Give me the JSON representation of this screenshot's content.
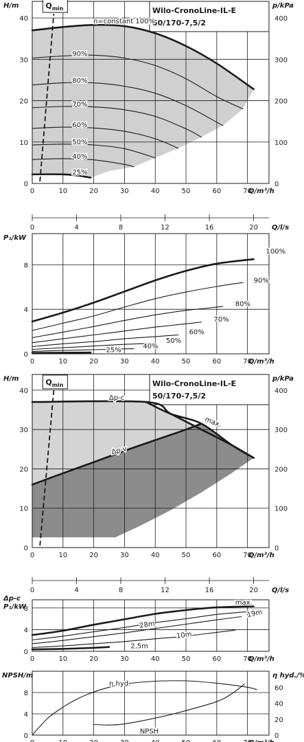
{
  "chart_data": [
    {
      "id": "head",
      "type": "line",
      "title": "Wilo-CronoLine-IL-E",
      "subtitle": "50/170-7,5/2",
      "ylabel": "H/m",
      "y2label": "p/kPa",
      "xlabel": "Q/m³/h",
      "x2label": "Q/l/s",
      "xlim": [
        0,
        77
      ],
      "ylim": [
        0,
        44
      ],
      "y2lim": [
        0,
        440
      ],
      "x2lim": [
        0,
        21.39
      ],
      "xticks": [
        0,
        10,
        20,
        30,
        40,
        50,
        60,
        70
      ],
      "yticks": [
        0,
        10,
        20,
        30,
        40
      ],
      "y2ticks": [
        0,
        100,
        200,
        300,
        400
      ],
      "x2ticks": [
        0,
        4,
        8,
        12,
        16,
        20
      ],
      "qmin_label": "min",
      "qmin_prefix": "Q",
      "region_fill": "#d0d0d0",
      "qmin_line": [
        {
          "x": 2.5,
          "y": 0.5
        },
        {
          "x": 7,
          "y": 41
        }
      ],
      "series": [
        {
          "name": "n=constant 100%",
          "points": [
            [
              0,
              37
            ],
            [
              10,
              37.8
            ],
            [
              20,
              38.3
            ],
            [
              30,
              38
            ],
            [
              40,
              36.3
            ],
            [
              50,
              33.2
            ],
            [
              60,
              29
            ],
            [
              72,
              22.8
            ]
          ],
          "bold": true
        },
        {
          "name": "90%",
          "points": [
            [
              0,
              30.3
            ],
            [
              10,
              30.8
            ],
            [
              20,
              31
            ],
            [
              30,
              30.3
            ],
            [
              40,
              28.5
            ],
            [
              50,
              25.3
            ],
            [
              60,
              21
            ],
            [
              68.5,
              18
            ]
          ]
        },
        {
          "name": "80%",
          "points": [
            [
              0,
              23.8
            ],
            [
              10,
              24.3
            ],
            [
              20,
              24.3
            ],
            [
              30,
              23.5
            ],
            [
              40,
              21.8
            ],
            [
              50,
              18.8
            ],
            [
              60,
              14.8
            ],
            [
              62,
              14
            ]
          ]
        },
        {
          "name": "70%",
          "points": [
            [
              0,
              18.3
            ],
            [
              10,
              18.6
            ],
            [
              20,
              18.5
            ],
            [
              30,
              17.8
            ],
            [
              40,
              16.2
            ],
            [
              50,
              13.2
            ],
            [
              55,
              11.2
            ]
          ]
        },
        {
          "name": "60%",
          "points": [
            [
              0,
              13.3
            ],
            [
              10,
              13.6
            ],
            [
              20,
              13.4
            ],
            [
              30,
              12.6
            ],
            [
              40,
              10.8
            ],
            [
              47.5,
              8.5
            ]
          ]
        },
        {
          "name": "50%",
          "points": [
            [
              0,
              9.3
            ],
            [
              10,
              9.5
            ],
            [
              20,
              9.3
            ],
            [
              30,
              8.4
            ],
            [
              40,
              6.2
            ]
          ]
        },
        {
          "name": "40%",
          "points": [
            [
              0,
              5.8
            ],
            [
              10,
              6
            ],
            [
              20,
              5.7
            ],
            [
              30,
              4.6
            ],
            [
              33,
              4
            ]
          ]
        },
        {
          "name": "25%",
          "points": [
            [
              0,
              2.2
            ],
            [
              10,
              2.2
            ],
            [
              15,
              1.9
            ],
            [
              19,
              1.4
            ]
          ],
          "bold": true
        }
      ],
      "region_edge": [
        [
          19,
          1.4
        ],
        [
          25,
          3
        ],
        [
          33,
          4
        ],
        [
          40,
          6.2
        ],
        [
          47.5,
          8.5
        ],
        [
          55,
          11.2
        ],
        [
          62,
          14
        ],
        [
          68.5,
          18
        ],
        [
          72,
          22.8
        ]
      ]
    },
    {
      "id": "power",
      "type": "line",
      "ylabel": "P₁/kW",
      "xlabel": "Q/m³/h",
      "xlim": [
        0,
        77
      ],
      "ylim": [
        0,
        10.8
      ],
      "xticks": [
        0,
        10,
        20,
        30,
        40,
        50,
        60,
        70
      ],
      "yticks": [
        0,
        4,
        8
      ],
      "series": [
        {
          "name": "100%",
          "points": [
            [
              0,
              2.9
            ],
            [
              10,
              3.7
            ],
            [
              20,
              4.6
            ],
            [
              30,
              5.6
            ],
            [
              40,
              6.6
            ],
            [
              50,
              7.45
            ],
            [
              60,
              8.1
            ],
            [
              72,
              8.5
            ]
          ],
          "bold": true
        },
        {
          "name": "90%",
          "points": [
            [
              0,
              2.1
            ],
            [
              10,
              2.75
            ],
            [
              20,
              3.4
            ],
            [
              30,
              4.2
            ],
            [
              40,
              4.95
            ],
            [
              50,
              5.55
            ],
            [
              60,
              6.05
            ],
            [
              68.5,
              6.4
            ]
          ]
        },
        {
          "name": "80%",
          "points": [
            [
              0,
              1.45
            ],
            [
              10,
              1.95
            ],
            [
              20,
              2.45
            ],
            [
              30,
              3
            ],
            [
              40,
              3.5
            ],
            [
              50,
              3.9
            ],
            [
              62,
              4.25
            ]
          ]
        },
        {
          "name": "70%",
          "points": [
            [
              0,
              1.0
            ],
            [
              10,
              1.35
            ],
            [
              20,
              1.7
            ],
            [
              30,
              2.05
            ],
            [
              40,
              2.4
            ],
            [
              50,
              2.7
            ],
            [
              55,
              2.85
            ]
          ]
        },
        {
          "name": "60%",
          "points": [
            [
              0,
              0.65
            ],
            [
              10,
              0.9
            ],
            [
              20,
              1.1
            ],
            [
              30,
              1.35
            ],
            [
              40,
              1.55
            ],
            [
              47.5,
              1.7
            ]
          ]
        },
        {
          "name": "50%",
          "points": [
            [
              0,
              0.4
            ],
            [
              10,
              0.55
            ],
            [
              20,
              0.7
            ],
            [
              30,
              0.85
            ],
            [
              40,
              0.95
            ]
          ]
        },
        {
          "name": "40%",
          "points": [
            [
              0,
              0.22
            ],
            [
              10,
              0.3
            ],
            [
              20,
              0.37
            ],
            [
              33,
              0.47
            ]
          ]
        },
        {
          "name": "25%",
          "points": [
            [
              0,
              0.08
            ],
            [
              10,
              0.1
            ],
            [
              19,
              0.12
            ]
          ],
          "bold": true
        }
      ]
    },
    {
      "id": "head-control",
      "type": "area",
      "title": "Wilo-CronoLine-IL-E",
      "subtitle": "50/170-7,5/2",
      "ylabel": "H/m",
      "y2label": "p/kPa",
      "xlabel": "Q/m³/h",
      "x2label": "Q/l/s",
      "xlim": [
        0,
        77
      ],
      "ylim": [
        0,
        44
      ],
      "y2lim": [
        0,
        440
      ],
      "x2lim": [
        0,
        21.39
      ],
      "xticks": [
        0,
        10,
        20,
        30,
        40,
        50,
        60,
        70
      ],
      "yticks": [
        0,
        10,
        20,
        30,
        40
      ],
      "y2ticks": [
        0,
        100,
        200,
        300,
        400
      ],
      "x2ticks": [
        0,
        4,
        8,
        12,
        16,
        20
      ],
      "qmin_label": "min",
      "qmin_prefix": "Q",
      "qmin_line": [
        {
          "x": 2.5,
          "y": 0.5
        },
        {
          "x": 7,
          "y": 40
        }
      ],
      "light_fill": "#d4d4d4",
      "dark_fill": "#8c8c8c",
      "series": [
        {
          "name": "Δp-c",
          "points": [
            [
              0,
              37
            ],
            [
              37,
              37
            ],
            [
              45,
              34
            ],
            [
              55,
              30
            ],
            [
              65,
              26
            ],
            [
              72,
              22.8
            ]
          ]
        },
        {
          "name": "Δp-v",
          "points": [
            [
              0,
              16
            ],
            [
              10,
              18.9
            ],
            [
              20,
              21.7
            ],
            [
              30,
              24.6
            ],
            [
              40,
              27.3
            ],
            [
              50,
              30
            ],
            [
              55,
              31.5
            ]
          ]
        },
        {
          "name": "max.",
          "points": [
            [
              37,
              37
            ],
            [
              45,
              34
            ],
            [
              55,
              31.5
            ],
            [
              65,
              26
            ],
            [
              72,
              22.8
            ]
          ]
        }
      ],
      "bottom_edge": [
        [
          0,
          2.6
        ],
        [
          27,
          2.6
        ],
        [
          35,
          5.5
        ],
        [
          45,
          9.5
        ],
        [
          55,
          14
        ],
        [
          65,
          19
        ],
        [
          72,
          22.8
        ]
      ]
    },
    {
      "id": "power-control",
      "type": "line",
      "ylabel_top": "Δp-c",
      "ylabel": "P₁/kW",
      "xlabel": "Q/m³/h",
      "xlim": [
        0,
        77
      ],
      "ylim": [
        0,
        9.5
      ],
      "xticks": [
        0,
        10,
        20,
        30,
        40,
        50,
        60,
        70
      ],
      "yticks": [
        0,
        4,
        8
      ],
      "series": [
        {
          "name": "max.",
          "points": [
            [
              0,
              3
            ],
            [
              10,
              3.8
            ],
            [
              20,
              4.9
            ],
            [
              30,
              5.9
            ],
            [
              40,
              6.9
            ],
            [
              50,
              7.6
            ],
            [
              60,
              8.1
            ],
            [
              72,
              8.3
            ]
          ],
          "bold": true
        },
        {
          "name": "28m",
          "points": [
            [
              0,
              2.1
            ],
            [
              10,
              2.8
            ],
            [
              20,
              3.6
            ],
            [
              30,
              4.4
            ],
            [
              40,
              5.3
            ],
            [
              50,
              6.0
            ],
            [
              60,
              6.8
            ],
            [
              70,
              7.3
            ]
          ]
        },
        {
          "name": "19m",
          "points": [
            [
              0,
              1.4
            ],
            [
              10,
              2.0
            ],
            [
              20,
              2.7
            ],
            [
              30,
              3.4
            ],
            [
              40,
              4.2
            ],
            [
              50,
              5.0
            ],
            [
              60,
              5.8
            ],
            [
              68,
              6.4
            ]
          ]
        },
        {
          "name": "10m",
          "points": [
            [
              0,
              0.7
            ],
            [
              10,
              1.0
            ],
            [
              20,
              1.4
            ],
            [
              30,
              1.8
            ],
            [
              40,
              2.3
            ],
            [
              50,
              2.8
            ],
            [
              60,
              3.5
            ],
            [
              66,
              3.9
            ]
          ]
        },
        {
          "name": "2,5m",
          "points": [
            [
              0,
              0.35
            ],
            [
              10,
              0.45
            ],
            [
              20,
              0.65
            ],
            [
              25,
              0.8
            ]
          ],
          "bold": true
        }
      ]
    },
    {
      "id": "npsh-efficiency",
      "type": "line",
      "ylabel": "NPSH/m",
      "y2label": "η hyd./%",
      "xlabel": "Q/m³/h",
      "xlim": [
        0,
        77
      ],
      "ylim": [
        0,
        12
      ],
      "y2lim": [
        0,
        80
      ],
      "xticks": [
        0,
        10,
        20,
        30,
        40,
        50,
        60,
        70
      ],
      "yticks": [
        0,
        4,
        8
      ],
      "y2ticks": [
        0,
        20,
        40,
        60
      ],
      "series": [
        {
          "name": "η hyd.",
          "axis": "y2",
          "points": [
            [
              0,
              0
            ],
            [
              5,
              21
            ],
            [
              10,
              35
            ],
            [
              15,
              46
            ],
            [
              20,
              54
            ],
            [
              25,
              60
            ],
            [
              30,
              64
            ],
            [
              40,
              67.5
            ],
            [
              50,
              68
            ],
            [
              60,
              65
            ],
            [
              70,
              60
            ],
            [
              73,
              57
            ]
          ]
        },
        {
          "name": "NPSH",
          "axis": "y",
          "points": [
            [
              20,
              2
            ],
            [
              25,
              1.9
            ],
            [
              30,
              2.1
            ],
            [
              40,
              3.2
            ],
            [
              50,
              4.6
            ],
            [
              60,
              6.3
            ],
            [
              65,
              7.8
            ],
            [
              69,
              9.6
            ]
          ]
        }
      ]
    }
  ]
}
